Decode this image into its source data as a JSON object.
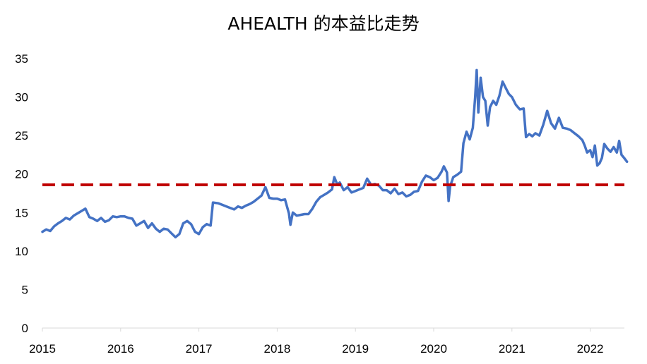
{
  "chart_data": {
    "type": "line",
    "title": "AHEALTH 的本益比走势",
    "xlabel": "",
    "ylabel": "",
    "x_ticks": [
      "2015",
      "2016",
      "2017",
      "2018",
      "2019",
      "2020",
      "2021",
      "2022"
    ],
    "y_ticks": [
      "0",
      "5",
      "10",
      "15",
      "20",
      "25",
      "30",
      "35"
    ],
    "xlim": [
      2015.0,
      2022.47
    ],
    "ylim": [
      0,
      35
    ],
    "grid": false,
    "legend": "none",
    "series": [
      {
        "color": "#4472C4",
        "points": [
          [
            2015.0,
            12.5
          ],
          [
            2015.05,
            12.8
          ],
          [
            2015.1,
            12.6
          ],
          [
            2015.15,
            13.2
          ],
          [
            2015.2,
            13.6
          ],
          [
            2015.25,
            13.9
          ],
          [
            2015.3,
            14.3
          ],
          [
            2015.35,
            14.1
          ],
          [
            2015.4,
            14.6
          ],
          [
            2015.45,
            14.9
          ],
          [
            2015.5,
            15.2
          ],
          [
            2015.55,
            15.5
          ],
          [
            2015.6,
            14.4
          ],
          [
            2015.65,
            14.2
          ],
          [
            2015.7,
            13.9
          ],
          [
            2015.75,
            14.3
          ],
          [
            2015.8,
            13.8
          ],
          [
            2015.85,
            14.0
          ],
          [
            2015.9,
            14.5
          ],
          [
            2015.95,
            14.4
          ],
          [
            2016.0,
            14.5
          ],
          [
            2016.05,
            14.5
          ],
          [
            2016.1,
            14.3
          ],
          [
            2016.15,
            14.2
          ],
          [
            2016.2,
            13.3
          ],
          [
            2016.25,
            13.6
          ],
          [
            2016.3,
            13.9
          ],
          [
            2016.35,
            13.0
          ],
          [
            2016.4,
            13.6
          ],
          [
            2016.45,
            12.9
          ],
          [
            2016.5,
            12.5
          ],
          [
            2016.55,
            12.9
          ],
          [
            2016.6,
            12.8
          ],
          [
            2016.65,
            12.3
          ],
          [
            2016.7,
            11.8
          ],
          [
            2016.75,
            12.2
          ],
          [
            2016.8,
            13.6
          ],
          [
            2016.85,
            13.9
          ],
          [
            2016.9,
            13.5
          ],
          [
            2016.95,
            12.5
          ],
          [
            2017.0,
            12.2
          ],
          [
            2017.05,
            13.1
          ],
          [
            2017.1,
            13.5
          ],
          [
            2017.15,
            13.3
          ],
          [
            2017.18,
            16.3
          ],
          [
            2017.25,
            16.2
          ],
          [
            2017.3,
            16.0
          ],
          [
            2017.35,
            15.8
          ],
          [
            2017.4,
            15.6
          ],
          [
            2017.45,
            15.4
          ],
          [
            2017.5,
            15.8
          ],
          [
            2017.55,
            15.6
          ],
          [
            2017.6,
            15.9
          ],
          [
            2017.65,
            16.1
          ],
          [
            2017.7,
            16.4
          ],
          [
            2017.75,
            16.8
          ],
          [
            2017.8,
            17.2
          ],
          [
            2017.85,
            18.3
          ],
          [
            2017.9,
            16.9
          ],
          [
            2017.95,
            16.8
          ],
          [
            2018.0,
            16.8
          ],
          [
            2018.05,
            16.6
          ],
          [
            2018.1,
            16.7
          ],
          [
            2018.15,
            14.9
          ],
          [
            2018.17,
            13.4
          ],
          [
            2018.2,
            15.0
          ],
          [
            2018.25,
            14.6
          ],
          [
            2018.3,
            14.7
          ],
          [
            2018.35,
            14.8
          ],
          [
            2018.4,
            14.8
          ],
          [
            2018.45,
            15.5
          ],
          [
            2018.5,
            16.4
          ],
          [
            2018.55,
            17.0
          ],
          [
            2018.6,
            17.3
          ],
          [
            2018.65,
            17.6
          ],
          [
            2018.7,
            18.0
          ],
          [
            2018.73,
            19.6
          ],
          [
            2018.77,
            18.6
          ],
          [
            2018.8,
            18.9
          ],
          [
            2018.85,
            17.9
          ],
          [
            2018.9,
            18.3
          ],
          [
            2018.95,
            17.6
          ],
          [
            2019.0,
            17.8
          ],
          [
            2019.05,
            18.0
          ],
          [
            2019.1,
            18.2
          ],
          [
            2019.15,
            19.4
          ],
          [
            2019.2,
            18.6
          ],
          [
            2019.25,
            18.7
          ],
          [
            2019.3,
            18.5
          ],
          [
            2019.35,
            17.9
          ],
          [
            2019.4,
            17.9
          ],
          [
            2019.45,
            17.5
          ],
          [
            2019.5,
            18.1
          ],
          [
            2019.55,
            17.4
          ],
          [
            2019.6,
            17.6
          ],
          [
            2019.65,
            17.1
          ],
          [
            2019.7,
            17.3
          ],
          [
            2019.75,
            17.7
          ],
          [
            2019.8,
            17.8
          ],
          [
            2019.85,
            19.0
          ],
          [
            2019.9,
            19.8
          ],
          [
            2019.95,
            19.6
          ],
          [
            2020.0,
            19.2
          ],
          [
            2020.05,
            19.5
          ],
          [
            2020.1,
            20.3
          ],
          [
            2020.13,
            21.0
          ],
          [
            2020.17,
            20.2
          ],
          [
            2020.19,
            16.5
          ],
          [
            2020.21,
            18.4
          ],
          [
            2020.25,
            19.6
          ],
          [
            2020.3,
            19.9
          ],
          [
            2020.35,
            20.3
          ],
          [
            2020.38,
            24.0
          ],
          [
            2020.42,
            25.5
          ],
          [
            2020.46,
            24.5
          ],
          [
            2020.5,
            26.0
          ],
          [
            2020.53,
            30.0
          ],
          [
            2020.55,
            33.5
          ],
          [
            2020.57,
            28.0
          ],
          [
            2020.6,
            32.5
          ],
          [
            2020.63,
            30.0
          ],
          [
            2020.66,
            29.5
          ],
          [
            2020.69,
            26.3
          ],
          [
            2020.72,
            28.7
          ],
          [
            2020.76,
            29.5
          ],
          [
            2020.8,
            29.0
          ],
          [
            2020.84,
            30.2
          ],
          [
            2020.88,
            32.0
          ],
          [
            2020.92,
            31.2
          ],
          [
            2020.96,
            30.4
          ],
          [
            2021.0,
            30.0
          ],
          [
            2021.05,
            29.0
          ],
          [
            2021.1,
            28.4
          ],
          [
            2021.15,
            28.5
          ],
          [
            2021.18,
            24.8
          ],
          [
            2021.22,
            25.2
          ],
          [
            2021.26,
            24.9
          ],
          [
            2021.3,
            25.3
          ],
          [
            2021.35,
            25.0
          ],
          [
            2021.4,
            26.4
          ],
          [
            2021.45,
            28.2
          ],
          [
            2021.5,
            26.6
          ],
          [
            2021.55,
            25.9
          ],
          [
            2021.6,
            27.3
          ],
          [
            2021.65,
            26.0
          ],
          [
            2021.7,
            25.9
          ],
          [
            2021.75,
            25.7
          ],
          [
            2021.8,
            25.3
          ],
          [
            2021.85,
            24.9
          ],
          [
            2021.9,
            24.4
          ],
          [
            2021.93,
            23.7
          ],
          [
            2021.96,
            22.8
          ],
          [
            2022.0,
            23.1
          ],
          [
            2022.03,
            22.2
          ],
          [
            2022.06,
            23.7
          ],
          [
            2022.09,
            21.1
          ],
          [
            2022.12,
            21.4
          ],
          [
            2022.15,
            22.1
          ],
          [
            2022.18,
            23.9
          ],
          [
            2022.22,
            23.3
          ],
          [
            2022.26,
            22.9
          ],
          [
            2022.3,
            23.5
          ],
          [
            2022.34,
            22.8
          ],
          [
            2022.37,
            24.3
          ],
          [
            2022.4,
            22.5
          ],
          [
            2022.44,
            22.0
          ],
          [
            2022.47,
            21.6
          ]
        ]
      }
    ],
    "reference_line": {
      "y": 18.6,
      "color": "#C00000",
      "style": "dashed"
    }
  }
}
